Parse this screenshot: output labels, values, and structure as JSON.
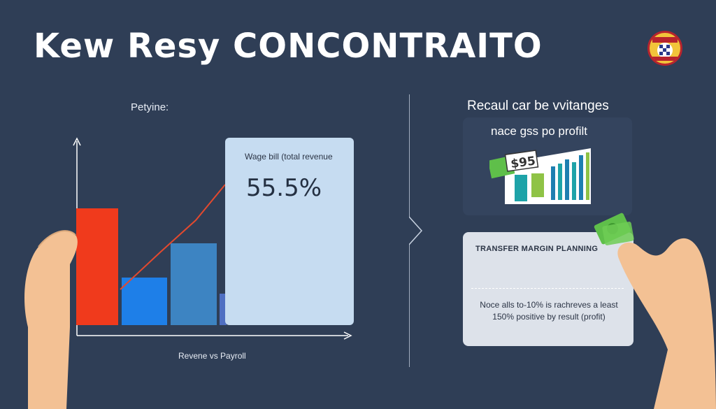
{
  "header": {
    "title": "Kew Resy CONCONTRAITO"
  },
  "left_panel": {
    "label": "Petyine:",
    "card_label": "Wage bill (total revenue",
    "card_value": "55.5%",
    "axis_label": "Revene vs Payroll"
  },
  "right_panel": {
    "heading": "Recaul car be vvitanges",
    "subheading": "nace gss po profilt",
    "money_label": "$95",
    "planning_title": "TRANSFER MARGIN PLANNING",
    "planning_body": "Noce alls to-10% is rachreves a least 150% positive by result (profit)"
  },
  "colors": {
    "background": "#2f3e56",
    "bar_red": "#f03a1c",
    "bar_blue": "#1e7fe8",
    "bar_steel": "#3d84c2",
    "card_light": "#c6dcf1",
    "money_green": "#5fbf4a",
    "accent_teal": "#1ea3a8"
  },
  "icons": {
    "badge": "club-crest-icon",
    "money": "money-bundle-icon"
  }
}
